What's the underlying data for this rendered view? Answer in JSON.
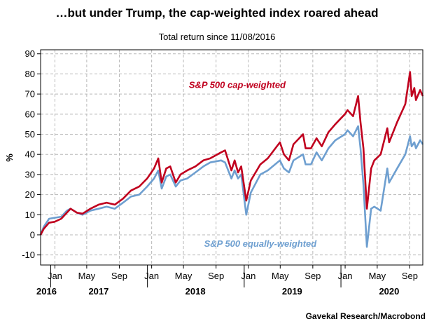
{
  "title": "…but under Trump, the cap-weighted index roared ahead",
  "subtitle": "Total return since 11/08/2016",
  "source": "Gavekal Research/Macrobond",
  "colors": {
    "cap": "#c0001e",
    "equal": "#6e9fd0",
    "grid": "#b8b8b8",
    "axis": "#000000"
  },
  "chart_data": {
    "type": "line",
    "title": "…but under Trump, the cap-weighted index roared ahead",
    "subtitle": "Total return since 11/08/2016",
    "ylabel": "%",
    "xlabel": "",
    "ylim": [
      -15,
      92
    ],
    "xlim": [
      "2016-11-08",
      "2020-10-20"
    ],
    "y_ticks": [
      -10,
      0,
      10,
      20,
      30,
      40,
      50,
      60,
      70,
      80,
      90
    ],
    "month_ticks": [
      {
        "date": "2017-01-01",
        "label": "Jan"
      },
      {
        "date": "2017-05-01",
        "label": "May"
      },
      {
        "date": "2017-09-01",
        "label": "Sep"
      },
      {
        "date": "2018-01-01",
        "label": "Jan"
      },
      {
        "date": "2018-05-01",
        "label": "May"
      },
      {
        "date": "2018-09-01",
        "label": "Sep"
      },
      {
        "date": "2019-01-01",
        "label": "Jan"
      },
      {
        "date": "2019-05-01",
        "label": "May"
      },
      {
        "date": "2019-09-01",
        "label": "Sep"
      },
      {
        "date": "2020-01-01",
        "label": "Jan"
      },
      {
        "date": "2020-05-01",
        "label": "May"
      },
      {
        "date": "2020-09-01",
        "label": "Sep"
      }
    ],
    "year_labels": [
      {
        "date": "2016-11-08",
        "label": "2016"
      },
      {
        "date": "2017-06-15",
        "label": "2017"
      },
      {
        "date": "2018-06-15",
        "label": "2018"
      },
      {
        "date": "2019-06-15",
        "label": "2019"
      },
      {
        "date": "2020-06-15",
        "label": "2020"
      }
    ],
    "grid": true,
    "series": [
      {
        "name": "S&P 500 cap-weighted",
        "color": "#c0001e",
        "label_anchor": {
          "date": "2018-11-20",
          "value": 73
        },
        "points": [
          [
            "2016-11-08",
            0
          ],
          [
            "2016-11-20",
            3
          ],
          [
            "2016-12-10",
            6
          ],
          [
            "2016-12-31",
            6.5
          ],
          [
            "2017-01-25",
            8
          ],
          [
            "2017-02-15",
            11
          ],
          [
            "2017-03-01",
            13
          ],
          [
            "2017-03-25",
            11
          ],
          [
            "2017-04-15",
            10.5
          ],
          [
            "2017-05-15",
            13
          ],
          [
            "2017-06-15",
            15
          ],
          [
            "2017-07-15",
            16
          ],
          [
            "2017-08-15",
            15
          ],
          [
            "2017-09-15",
            18
          ],
          [
            "2017-10-15",
            22
          ],
          [
            "2017-11-15",
            24
          ],
          [
            "2017-12-15",
            28
          ],
          [
            "2018-01-10",
            33
          ],
          [
            "2018-01-26",
            38
          ],
          [
            "2018-02-08",
            26
          ],
          [
            "2018-02-25",
            33
          ],
          [
            "2018-03-12",
            34
          ],
          [
            "2018-04-02",
            26
          ],
          [
            "2018-04-20",
            30
          ],
          [
            "2018-05-15",
            32
          ],
          [
            "2018-06-15",
            34
          ],
          [
            "2018-07-15",
            37
          ],
          [
            "2018-08-10",
            38
          ],
          [
            "2018-09-20",
            41
          ],
          [
            "2018-10-05",
            42
          ],
          [
            "2018-10-29",
            32
          ],
          [
            "2018-11-10",
            37
          ],
          [
            "2018-11-23",
            31
          ],
          [
            "2018-12-05",
            34
          ],
          [
            "2018-12-24",
            17
          ],
          [
            "2019-01-10",
            27
          ],
          [
            "2019-02-15",
            35
          ],
          [
            "2019-03-15",
            38
          ],
          [
            "2019-04-30",
            46
          ],
          [
            "2019-05-15",
            40
          ],
          [
            "2019-06-03",
            37
          ],
          [
            "2019-06-20",
            45
          ],
          [
            "2019-07-26",
            50
          ],
          [
            "2019-08-05",
            43
          ],
          [
            "2019-08-25",
            43
          ],
          [
            "2019-09-15",
            48
          ],
          [
            "2019-10-05",
            44
          ],
          [
            "2019-10-30",
            51
          ],
          [
            "2019-11-25",
            55
          ],
          [
            "2019-12-31",
            60
          ],
          [
            "2020-01-10",
            62
          ],
          [
            "2020-01-31",
            59
          ],
          [
            "2020-02-19",
            69
          ],
          [
            "2020-02-28",
            56
          ],
          [
            "2020-03-10",
            43
          ],
          [
            "2020-03-23",
            13
          ],
          [
            "2020-04-08",
            33
          ],
          [
            "2020-04-20",
            37
          ],
          [
            "2020-05-14",
            40
          ],
          [
            "2020-06-08",
            53
          ],
          [
            "2020-06-15",
            46
          ],
          [
            "2020-07-15",
            56
          ],
          [
            "2020-08-15",
            65
          ],
          [
            "2020-09-02",
            81
          ],
          [
            "2020-09-08",
            69
          ],
          [
            "2020-09-18",
            73
          ],
          [
            "2020-09-24",
            67
          ],
          [
            "2020-10-10",
            72
          ],
          [
            "2020-10-20",
            69
          ]
        ]
      },
      {
        "name": "S&P 500 equally-weighted",
        "color": "#6e9fd0",
        "label_anchor": {
          "date": "2019-02-15",
          "value": -6
        },
        "points": [
          [
            "2016-11-08",
            0
          ],
          [
            "2016-11-20",
            4
          ],
          [
            "2016-12-10",
            8
          ],
          [
            "2016-12-31",
            8.5
          ],
          [
            "2017-01-25",
            9
          ],
          [
            "2017-02-15",
            12
          ],
          [
            "2017-03-01",
            13
          ],
          [
            "2017-03-25",
            11
          ],
          [
            "2017-04-15",
            10
          ],
          [
            "2017-05-15",
            12
          ],
          [
            "2017-06-15",
            13
          ],
          [
            "2017-07-15",
            14
          ],
          [
            "2017-08-15",
            13
          ],
          [
            "2017-09-15",
            16
          ],
          [
            "2017-10-15",
            19
          ],
          [
            "2017-11-15",
            20
          ],
          [
            "2017-12-15",
            24
          ],
          [
            "2018-01-10",
            28
          ],
          [
            "2018-01-26",
            32
          ],
          [
            "2018-02-08",
            23
          ],
          [
            "2018-02-25",
            29
          ],
          [
            "2018-03-12",
            30
          ],
          [
            "2018-04-02",
            24
          ],
          [
            "2018-04-20",
            27
          ],
          [
            "2018-05-15",
            28
          ],
          [
            "2018-06-15",
            31
          ],
          [
            "2018-07-15",
            34
          ],
          [
            "2018-08-10",
            36
          ],
          [
            "2018-09-20",
            37
          ],
          [
            "2018-10-05",
            36
          ],
          [
            "2018-10-29",
            28
          ],
          [
            "2018-11-10",
            32
          ],
          [
            "2018-11-23",
            28
          ],
          [
            "2018-12-05",
            30
          ],
          [
            "2018-12-24",
            10
          ],
          [
            "2019-01-10",
            21
          ],
          [
            "2019-02-15",
            30
          ],
          [
            "2019-03-15",
            32
          ],
          [
            "2019-04-30",
            37
          ],
          [
            "2019-05-15",
            33
          ],
          [
            "2019-06-03",
            31
          ],
          [
            "2019-06-20",
            37
          ],
          [
            "2019-07-26",
            40
          ],
          [
            "2019-08-05",
            35
          ],
          [
            "2019-08-25",
            35
          ],
          [
            "2019-09-15",
            41
          ],
          [
            "2019-10-05",
            37
          ],
          [
            "2019-10-30",
            43
          ],
          [
            "2019-11-25",
            47
          ],
          [
            "2019-12-31",
            50
          ],
          [
            "2020-01-10",
            52
          ],
          [
            "2020-01-31",
            49
          ],
          [
            "2020-02-19",
            54
          ],
          [
            "2020-02-28",
            43
          ],
          [
            "2020-03-10",
            25
          ],
          [
            "2020-03-23",
            -6
          ],
          [
            "2020-04-08",
            13
          ],
          [
            "2020-04-20",
            14
          ],
          [
            "2020-05-14",
            12
          ],
          [
            "2020-06-08",
            33
          ],
          [
            "2020-06-15",
            26
          ],
          [
            "2020-07-15",
            33
          ],
          [
            "2020-08-15",
            40
          ],
          [
            "2020-09-02",
            49
          ],
          [
            "2020-09-08",
            44
          ],
          [
            "2020-09-18",
            46
          ],
          [
            "2020-09-24",
            43
          ],
          [
            "2020-10-10",
            47
          ],
          [
            "2020-10-20",
            45
          ]
        ]
      }
    ]
  }
}
